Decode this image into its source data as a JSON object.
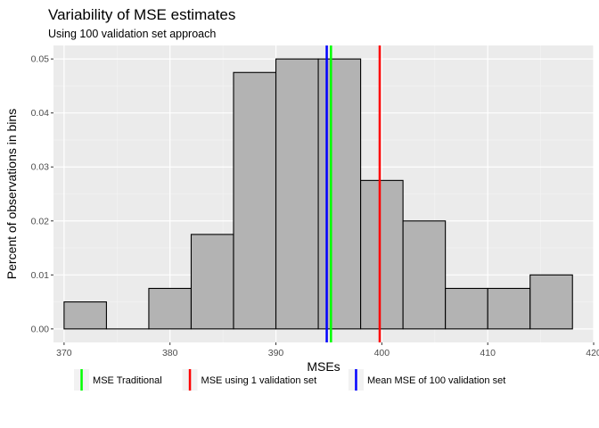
{
  "chart_data": {
    "type": "histogram",
    "title": "Variability of MSE estimates",
    "subtitle": "Using 100 validation set approach",
    "xlabel": "MSEs",
    "ylabel": "Percent of observations in bins",
    "xlim": [
      369,
      420
    ],
    "ylim": [
      -0.0025,
      0.0525
    ],
    "x_ticks": [
      370,
      380,
      390,
      400,
      410,
      420
    ],
    "y_ticks": [
      0.0,
      0.01,
      0.02,
      0.03,
      0.04,
      0.05
    ],
    "x_tick_labels": [
      "370",
      "380",
      "390",
      "400",
      "410",
      "420"
    ],
    "y_tick_labels": [
      "0.00",
      "0.01",
      "0.02",
      "0.03",
      "0.04",
      "0.05"
    ],
    "bins": [
      {
        "x0": 370,
        "x1": 374,
        "value": 0.005
      },
      {
        "x0": 374,
        "x1": 378,
        "value": 0.0
      },
      {
        "x0": 378,
        "x1": 382,
        "value": 0.0075
      },
      {
        "x0": 382,
        "x1": 386,
        "value": 0.0175
      },
      {
        "x0": 386,
        "x1": 390,
        "value": 0.0475
      },
      {
        "x0": 390,
        "x1": 394,
        "value": 0.05
      },
      {
        "x0": 394,
        "x1": 398,
        "value": 0.05
      },
      {
        "x0": 398,
        "x1": 402,
        "value": 0.0275
      },
      {
        "x0": 402,
        "x1": 406,
        "value": 0.02
      },
      {
        "x0": 406,
        "x1": 410,
        "value": 0.0075
      },
      {
        "x0": 410,
        "x1": 414,
        "value": 0.0075
      },
      {
        "x0": 414,
        "x1": 418,
        "value": 0.01
      }
    ],
    "vlines": [
      {
        "name": "MSE Traditional",
        "x": 395.2,
        "color": "#00ff00"
      },
      {
        "name": "MSE using 1 validation set",
        "x": 399.8,
        "color": "#ff0000"
      },
      {
        "name": "Mean MSE of 100 validation set",
        "x": 394.8,
        "color": "#0000ff"
      }
    ],
    "bar_fill": "#b3b3b3",
    "bar_stroke": "#000000",
    "panel_background": "#ebebeb",
    "grid": true,
    "legend_position": "bottom"
  }
}
